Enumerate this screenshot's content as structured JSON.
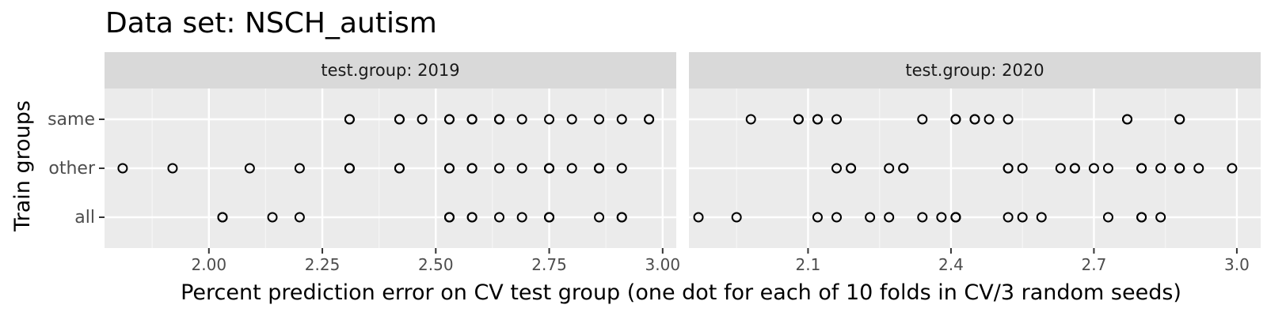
{
  "chart_data": {
    "type": "scatter",
    "title": "Data set: NSCH_autism",
    "xlabel": "Percent prediction error on CV test group (one dot for each of 10 folds in CV/3 random seeds)",
    "ylabel": "Train groups",
    "categories": [
      "same",
      "other",
      "all"
    ],
    "facets": [
      {
        "strip_label": "test.group: 2019",
        "xlim": [
          1.77,
          3.03
        ],
        "x_ticks": [
          2.0,
          2.25,
          2.5,
          2.75,
          3.0
        ],
        "x_tick_labels": [
          "2.00",
          "2.25",
          "2.50",
          "2.75",
          "3.00"
        ],
        "series": [
          {
            "group": "same",
            "values": [
              2.31,
              2.31,
              2.42,
              2.42,
              2.47,
              2.53,
              2.53,
              2.58,
              2.58,
              2.58,
              2.64,
              2.64,
              2.64,
              2.69,
              2.75,
              2.8,
              2.86,
              2.91,
              2.97,
              2.97
            ]
          },
          {
            "group": "other",
            "values": [
              1.81,
              1.92,
              2.09,
              2.2,
              2.31,
              2.31,
              2.31,
              2.42,
              2.42,
              2.53,
              2.53,
              2.58,
              2.58,
              2.64,
              2.69,
              2.75,
              2.75,
              2.75,
              2.8,
              2.86,
              2.86,
              2.86,
              2.91
            ]
          },
          {
            "group": "all",
            "values": [
              2.03,
              2.03,
              2.14,
              2.2,
              2.53,
              2.53,
              2.53,
              2.58,
              2.58,
              2.64,
              2.69,
              2.75,
              2.75,
              2.75,
              2.86,
              2.91,
              2.91
            ]
          }
        ]
      },
      {
        "strip_label": "test.group: 2020",
        "xlim": [
          1.85,
          3.05
        ],
        "x_ticks": [
          2.1,
          2.4,
          2.7,
          3.0
        ],
        "x_tick_labels": [
          "2.1",
          "2.4",
          "2.7",
          "3.0"
        ],
        "series": [
          {
            "group": "same",
            "values": [
              1.98,
              2.08,
              2.08,
              2.12,
              2.12,
              2.16,
              2.34,
              2.41,
              2.41,
              2.45,
              2.45,
              2.48,
              2.52,
              2.77,
              2.77,
              2.88,
              2.88
            ]
          },
          {
            "group": "other",
            "values": [
              2.16,
              2.19,
              2.19,
              2.27,
              2.3,
              2.3,
              2.52,
              2.52,
              2.55,
              2.63,
              2.66,
              2.66,
              2.7,
              2.73,
              2.8,
              2.8,
              2.84,
              2.88,
              2.88,
              2.92,
              2.99
            ]
          },
          {
            "group": "all",
            "values": [
              1.87,
              1.95,
              2.12,
              2.16,
              2.23,
              2.27,
              2.34,
              2.38,
              2.41,
              2.41,
              2.41,
              2.52,
              2.55,
              2.59,
              2.73,
              2.8,
              2.8,
              2.84
            ]
          }
        ]
      }
    ],
    "colors": {
      "panel_background": "#ebebeb",
      "strip_background": "#d9d9d9",
      "grid_major": "#ffffff",
      "grid_minor": "#f5f5f5",
      "point_stroke": "#000000"
    },
    "grid": true,
    "legend": "none"
  }
}
